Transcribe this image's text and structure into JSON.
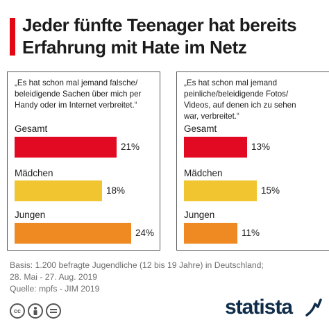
{
  "title": {
    "line1": "Jeder fünfte Teenager hat bereits",
    "line2": "Erfahrung mit Hate im Netz"
  },
  "colors": {
    "accent": "#e30613",
    "Gesamt": "#e20a23",
    "Mädchen": "#f0c52f",
    "Jungen": "#ef8a22"
  },
  "chart_data": [
    {
      "type": "bar",
      "orientation": "horizontal",
      "title": "„Es hat schon mal jemand falsche/ beleidigende Sachen über mich per Handy oder im Internet verbreitet.“",
      "title_lines": [
        "„Es hat schon mal jemand falsche/",
        "beleidigende Sachen über mich per",
        "Handy oder im Internet verbreitet.“"
      ],
      "categories": [
        "Gesamt",
        "Mädchen",
        "Jungen"
      ],
      "values": [
        21,
        18,
        24
      ],
      "labels": [
        "21%",
        "18%",
        "24%"
      ],
      "unit": "%",
      "xlim": [
        0,
        24
      ]
    },
    {
      "type": "bar",
      "orientation": "horizontal",
      "title": "„Es hat schon mal jemand peinliche/beleidigende Fotos/ Videos, auf denen ich zu sehen war, verbreitet.“",
      "title_lines": [
        "„Es hat schon mal jemand",
        "peinliche/beleidigende Fotos/",
        "Videos, auf denen ich zu sehen",
        "war, verbreitet.“"
      ],
      "categories": [
        "Gesamt",
        "Mädchen",
        "Jungen"
      ],
      "values": [
        13,
        15,
        11
      ],
      "labels": [
        "13%",
        "15%",
        "11%"
      ],
      "unit": "%",
      "xlim": [
        0,
        24
      ]
    }
  ],
  "footer": {
    "basis_line1": "Basis: 1.200 befragte Jugendliche (12 bis 19 Jahre) in Deutschland;",
    "basis_line2": "28. Mai - 27. Aug. 2019",
    "source": "Quelle: mpfs - JIM 2019"
  },
  "license_icons": [
    "creative-commons-icon",
    "attribution-icon",
    "no-derivatives-icon"
  ],
  "logo": "statista"
}
